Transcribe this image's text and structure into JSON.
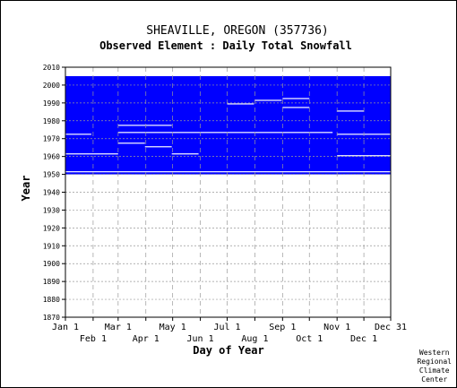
{
  "chart_data": {
    "type": "heatmap",
    "title": "SHEAVILLE, OREGON   (357736)",
    "subtitle": "Observed Element : Daily Total Snowfall",
    "xlabel": "Day of Year",
    "ylabel": "Year",
    "ylim": [
      1870,
      2010
    ],
    "xlim": [
      1,
      365
    ],
    "x_ticks_top_row": [
      {
        "label": "Jan 1",
        "day": 1
      },
      {
        "label": "Mar 1",
        "day": 60
      },
      {
        "label": "May 1",
        "day": 121
      },
      {
        "label": "Jul 1",
        "day": 182
      },
      {
        "label": "Sep 1",
        "day": 244
      },
      {
        "label": "Nov 1",
        "day": 305
      },
      {
        "label": "Dec 31",
        "day": 365
      }
    ],
    "x_ticks_bottom_row": [
      {
        "label": "Feb 1",
        "day": 32
      },
      {
        "label": "Apr 1",
        "day": 91
      },
      {
        "label": "Jun 1",
        "day": 152
      },
      {
        "label": "Aug 1",
        "day": 213
      },
      {
        "label": "Oct 1",
        "day": 274
      },
      {
        "label": "Dec 1",
        "day": 335
      }
    ],
    "y_ticks": [
      "2010",
      "2000",
      "1990",
      "1980",
      "1970",
      "1960",
      "1950",
      "1940",
      "1930",
      "1920",
      "1910",
      "1900",
      "1890",
      "1880",
      "1870"
    ],
    "grid": true,
    "fill_color": "#0000ff",
    "coverage_note": "Blue cells mark days with observed data",
    "data_blocks": [
      {
        "day_start": 1,
        "day_end": 365,
        "year_start": 1950,
        "year_end": 2004
      }
    ],
    "missing_segments": [
      {
        "day_start": 1,
        "day_end": 365,
        "year": 1951
      },
      {
        "day_start": 60,
        "day_end": 300,
        "year": 1973
      },
      {
        "day_start": 1,
        "day_end": 60,
        "year": 1961
      },
      {
        "day_start": 60,
        "day_end": 90,
        "year": 1967
      },
      {
        "day_start": 90,
        "day_end": 120,
        "year": 1965
      },
      {
        "day_start": 120,
        "day_end": 150,
        "year": 1961
      },
      {
        "day_start": 182,
        "day_end": 212,
        "year": 1989
      },
      {
        "day_start": 213,
        "day_end": 243,
        "year": 1991
      },
      {
        "day_start": 244,
        "day_end": 274,
        "year": 1992
      },
      {
        "day_start": 305,
        "day_end": 335,
        "year": 1985
      },
      {
        "day_start": 305,
        "day_end": 365,
        "year": 1972
      },
      {
        "day_start": 305,
        "day_end": 365,
        "year": 1960
      },
      {
        "day_start": 1,
        "day_end": 30,
        "year": 1972
      },
      {
        "day_start": 60,
        "day_end": 120,
        "year": 1977
      },
      {
        "day_start": 244,
        "day_end": 274,
        "year": 1987
      }
    ]
  },
  "credit": {
    "line1": "Western",
    "line2": "Regional",
    "line3": "Climate",
    "line4": "Center"
  }
}
